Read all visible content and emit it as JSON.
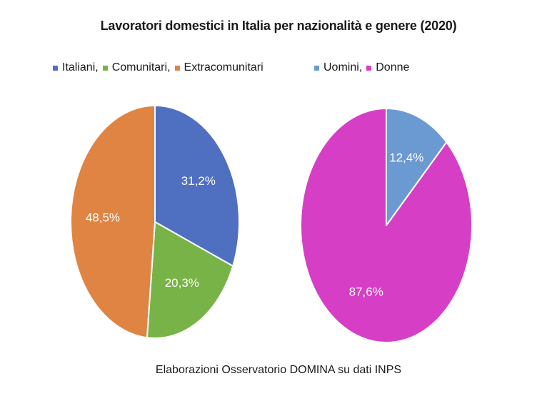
{
  "chart_data": [
    {
      "type": "pie",
      "title": "Lavoratori domestici in Italia per nazionalità e genere (2020)",
      "categories": [
        "Italiani",
        "Comunitari",
        "Extracomunitari"
      ],
      "legend_labels": [
        "Italiani,",
        "Comunitari,",
        "Extracomunitari"
      ],
      "values": [
        31.2,
        20.3,
        48.5
      ],
      "value_labels": [
        "31,2%",
        "20,3%",
        "48,5%"
      ],
      "colors": [
        "#4f6fc1",
        "#78b347",
        "#df8442"
      ],
      "legend_position": "top-left"
    },
    {
      "type": "pie",
      "categories": [
        "Uomini",
        "Donne"
      ],
      "legend_labels": [
        "Uomini,",
        "Donne"
      ],
      "values": [
        12.4,
        87.6
      ],
      "value_labels": [
        "12,4%",
        "87,6%"
      ],
      "colors": [
        "#6b9ad2",
        "#d63fc5"
      ],
      "legend_position": "top-right"
    }
  ],
  "source": "Elaborazioni Osservatorio DOMINA su dati INPS"
}
